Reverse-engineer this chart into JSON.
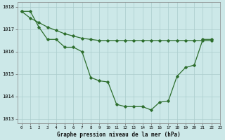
{
  "title": "Graphe pression niveau de la mer (hPa)",
  "background_color": "#cce8e8",
  "grid_color": "#aacccc",
  "line_color": "#2d6e2d",
  "series1": [
    1017.8,
    1017.8,
    1017.1,
    1016.55,
    1016.55,
    1016.2,
    1016.2,
    1016.0,
    1014.85,
    1014.7,
    1014.65,
    1013.65,
    1013.55,
    1013.55,
    1013.55,
    1013.4,
    1013.75,
    1013.8,
    1014.9,
    1015.3,
    1015.4,
    1016.55,
    1016.55
  ],
  "series2": [
    1017.8,
    1017.5,
    1017.3,
    1017.1,
    1016.95,
    1016.8,
    1016.7,
    1016.6,
    1016.55,
    1016.5,
    1016.5,
    1016.5,
    1016.5,
    1016.5,
    1016.5,
    1016.5,
    1016.5,
    1016.5,
    1016.5,
    1016.5,
    1016.5,
    1016.5,
    1016.5
  ],
  "xlabels": [
    "0",
    "1",
    "2",
    "3",
    "4",
    "5",
    "6",
    "7",
    "8",
    "9",
    "10",
    "11",
    "12",
    "13",
    "14",
    "15",
    "16",
    "17",
    "18",
    "19",
    "20",
    "21",
    "22",
    "23"
  ],
  "ylim": [
    1012.8,
    1018.2
  ],
  "yticks": [
    1013,
    1014,
    1015,
    1016,
    1017,
    1018
  ],
  "figwidth": 3.2,
  "figheight": 2.0,
  "dpi": 100
}
